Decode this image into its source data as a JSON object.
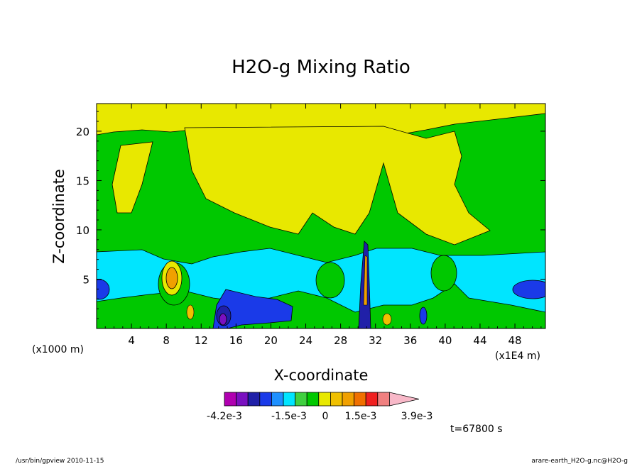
{
  "chart_data": {
    "type": "heatmap",
    "title": "H2O-g Mixing Ratio",
    "xlabel": "X-coordinate",
    "ylabel": "Z-coordinate",
    "x_unit_left": "(x1000 m)",
    "x_unit_right": "(x1E4 m)",
    "xlim": [
      0,
      51.5
    ],
    "ylim": [
      0,
      22.8
    ],
    "x_ticks": [
      "4",
      "8",
      "12",
      "16",
      "20",
      "24",
      "28",
      "32",
      "36",
      "40",
      "44",
      "48"
    ],
    "y_ticks": [
      "5",
      "10",
      "15",
      "20"
    ],
    "colorbar": {
      "colors": [
        "#b000b0",
        "#7a10c0",
        "#2020a8",
        "#1a3ae8",
        "#1e90ff",
        "#00e5ff",
        "#40d040",
        "#00c800",
        "#e8e800",
        "#f0c000",
        "#f0a000",
        "#f07000",
        "#f02020",
        "#f08080",
        "#f8b8c8"
      ],
      "labels": [
        "-4.2e-3",
        "-1.5e-3",
        "0",
        "1.5e-3",
        "3.9e-3"
      ]
    },
    "time_label": "t=67800 s",
    "grid": false,
    "legend": "colorbar-bottom"
  },
  "footer": {
    "left": "/usr/bin/gpview   2010-11-15",
    "right": "arare-earth_H2O-g.nc@H2O-g"
  }
}
